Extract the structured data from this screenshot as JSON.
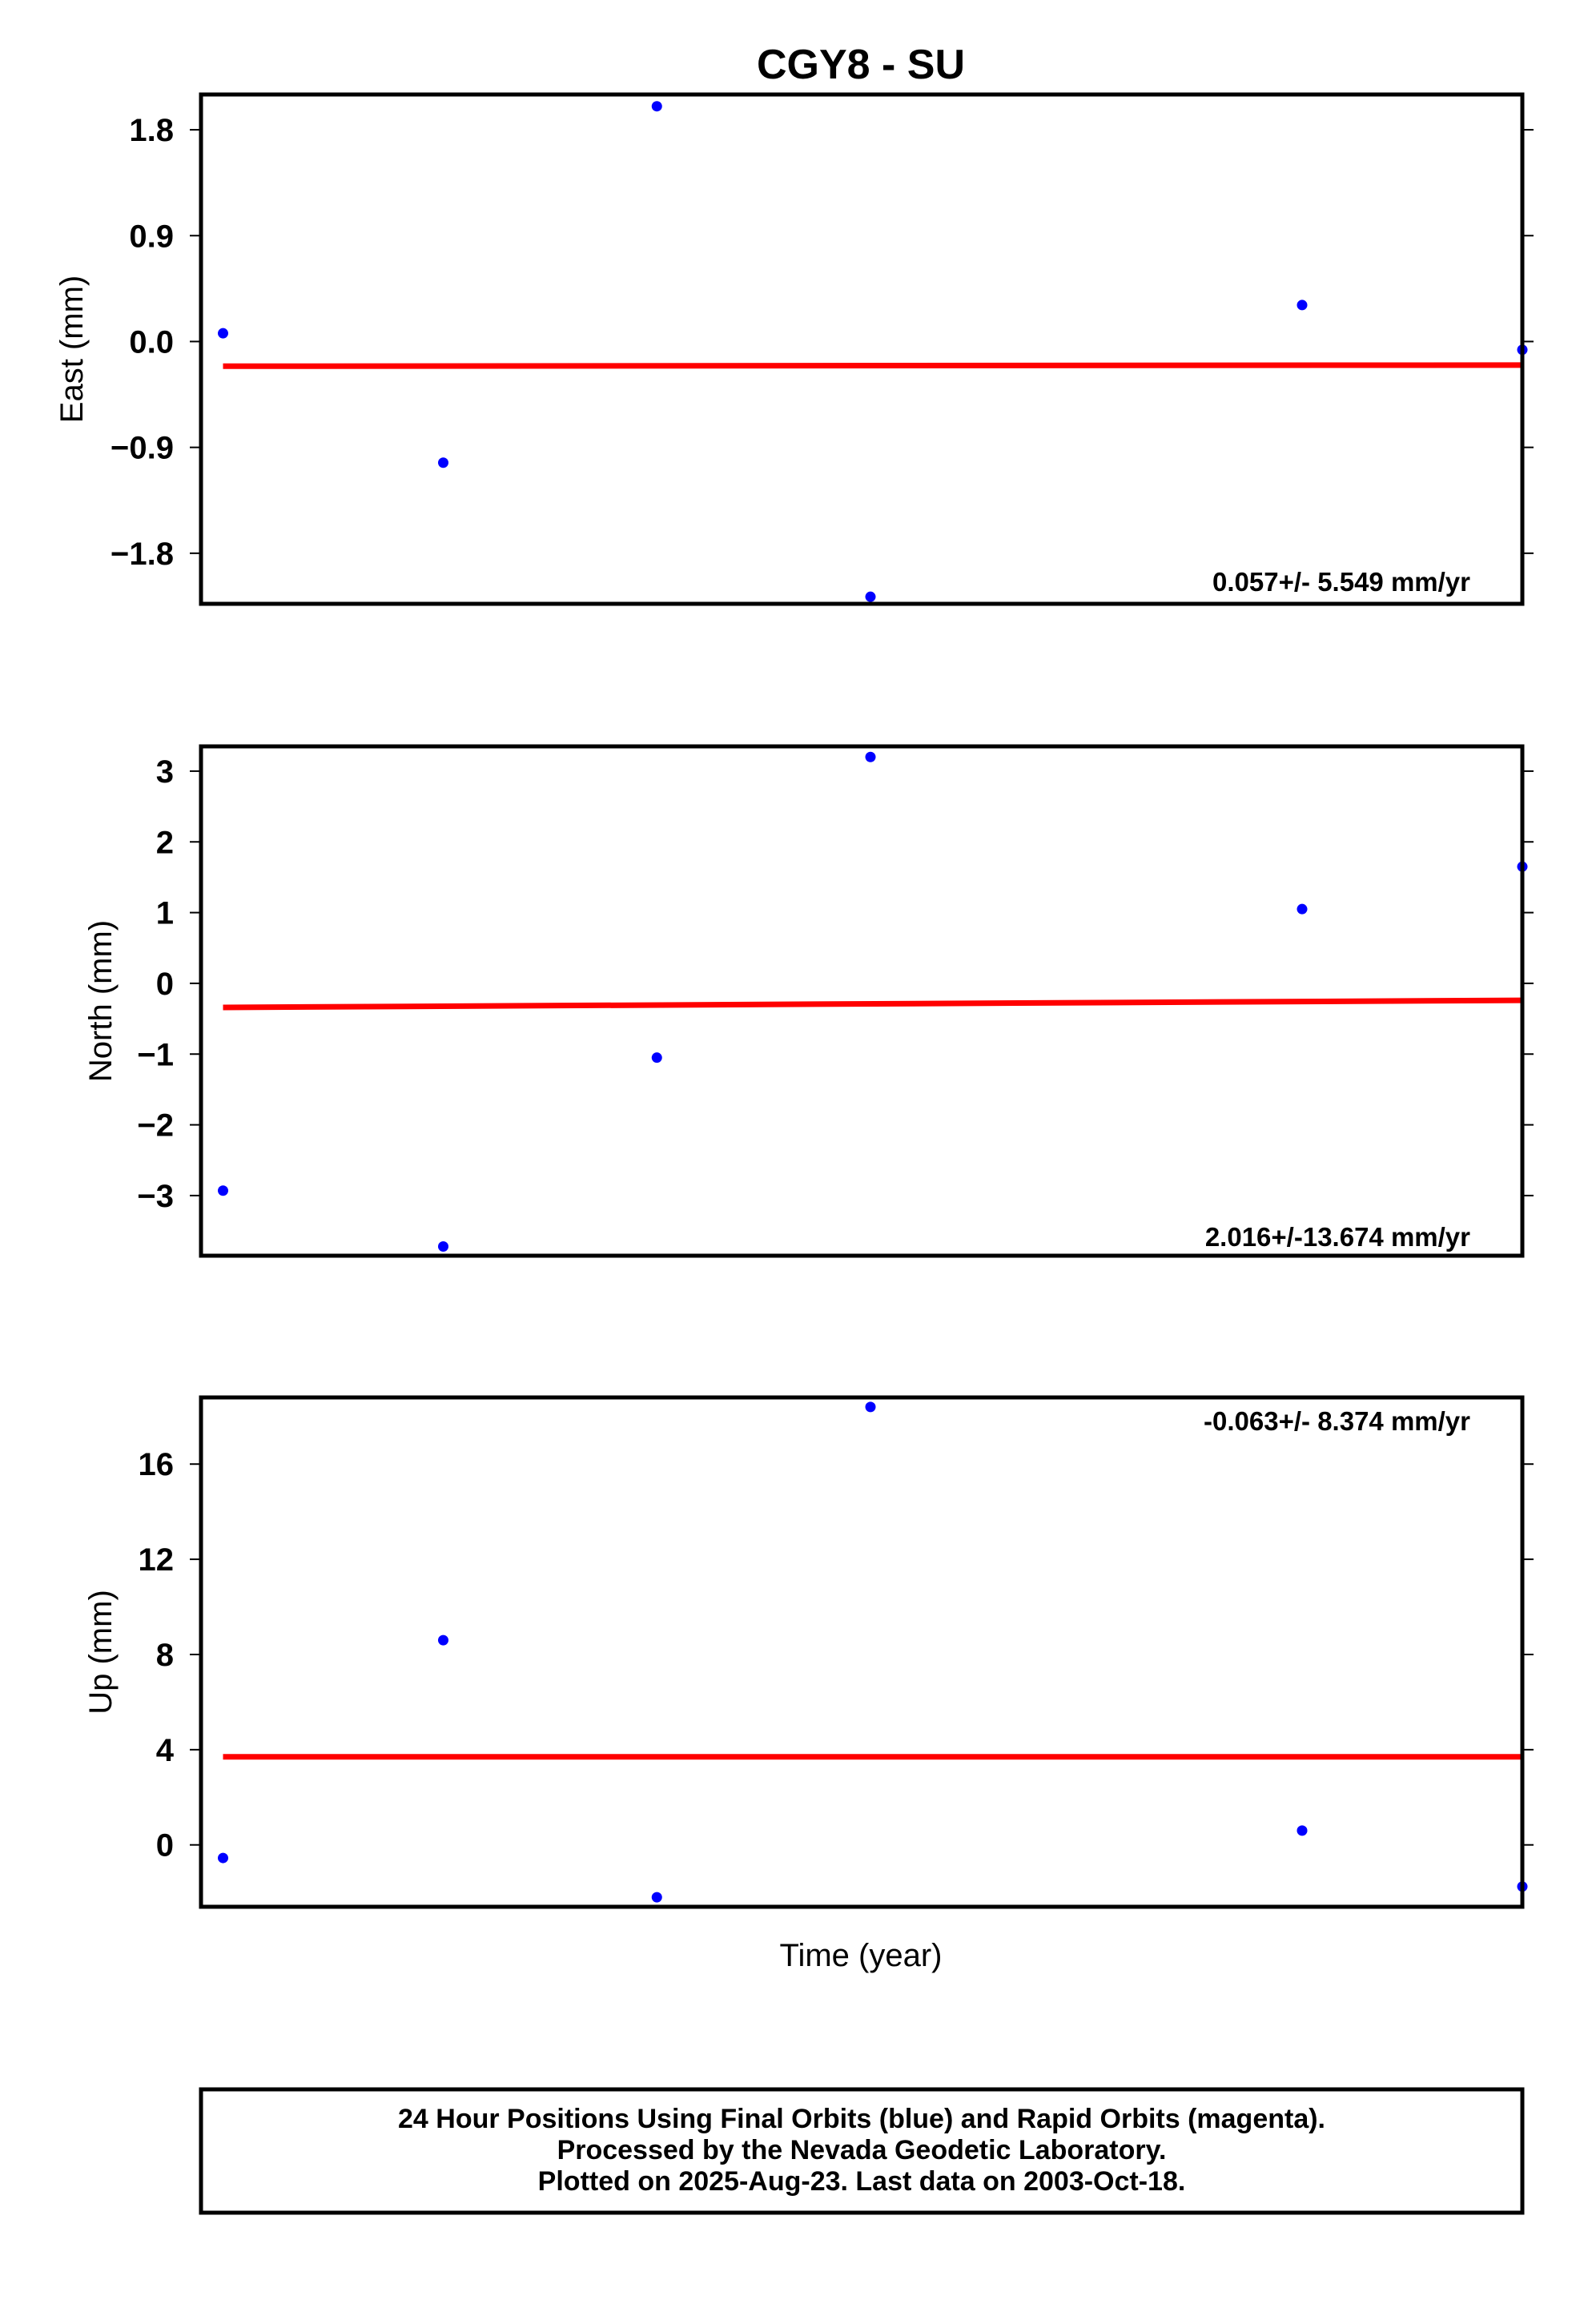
{
  "title": "CGY8 - SU",
  "xlabel": "Time (year)",
  "footer": {
    "lines": [
      "24 Hour Positions Using Final Orbits (blue) and Rapid Orbits (magenta).",
      "Processed by the Nevada Geodetic Laboratory.",
      "Plotted on 2025-Aug-23. Last data on 2003-Oct-18."
    ]
  },
  "colors": {
    "points": "#0000ff",
    "trend": "#ff0000",
    "frame": "#000000"
  },
  "chart_data": [
    {
      "type": "scatter",
      "ylabel": "East (mm)",
      "yticks": [
        "1.8",
        "0.9",
        "0.0",
        "−0.9",
        "−1.8"
      ],
      "ytick_values": [
        1.8,
        0.9,
        0.0,
        -0.9,
        -1.8
      ],
      "ylim": [
        -2.23,
        2.1
      ],
      "xlim": [
        0,
        60
      ],
      "x": [
        1,
        11,
        20.7,
        30.4,
        50,
        60
      ],
      "values": [
        0.07,
        -1.03,
        2.0,
        -2.17,
        0.31,
        -0.07
      ],
      "trend": {
        "x": [
          1,
          60
        ],
        "y": [
          -0.21,
          -0.2
        ]
      },
      "rate_text": "0.057+/- 5.549 mm/yr",
      "rate_position": "bottom-right"
    },
    {
      "type": "scatter",
      "ylabel": "North (mm)",
      "yticks": [
        "3",
        "2",
        "1",
        "0",
        "−1",
        "−2",
        "−3"
      ],
      "ytick_values": [
        3,
        2,
        1,
        0,
        -1,
        -2,
        -3
      ],
      "ylim": [
        -3.85,
        3.35
      ],
      "xlim": [
        0,
        60
      ],
      "x": [
        1,
        11,
        20.7,
        30.4,
        50,
        60
      ],
      "values": [
        -2.93,
        -3.72,
        -1.05,
        3.2,
        1.05,
        1.65
      ],
      "trend": {
        "x": [
          1,
          60
        ],
        "y": [
          -0.34,
          -0.24
        ]
      },
      "rate_text": "2.016+/-13.674 mm/yr",
      "rate_position": "bottom-right"
    },
    {
      "type": "scatter",
      "ylabel": "Up (mm)",
      "yticks": [
        "16",
        "12",
        "8",
        "4",
        "0"
      ],
      "ytick_values": [
        16,
        12,
        8,
        4,
        0
      ],
      "ylim": [
        -2.6,
        18.8
      ],
      "xlim": [
        0,
        60
      ],
      "x": [
        1,
        11,
        20.7,
        30.4,
        50,
        60
      ],
      "values": [
        -0.55,
        8.6,
        -2.2,
        18.4,
        0.6,
        -1.75
      ],
      "trend": {
        "x": [
          1,
          60
        ],
        "y": [
          3.7,
          3.7
        ]
      },
      "rate_text": "-0.063+/- 8.374 mm/yr",
      "rate_position": "top-right"
    }
  ]
}
